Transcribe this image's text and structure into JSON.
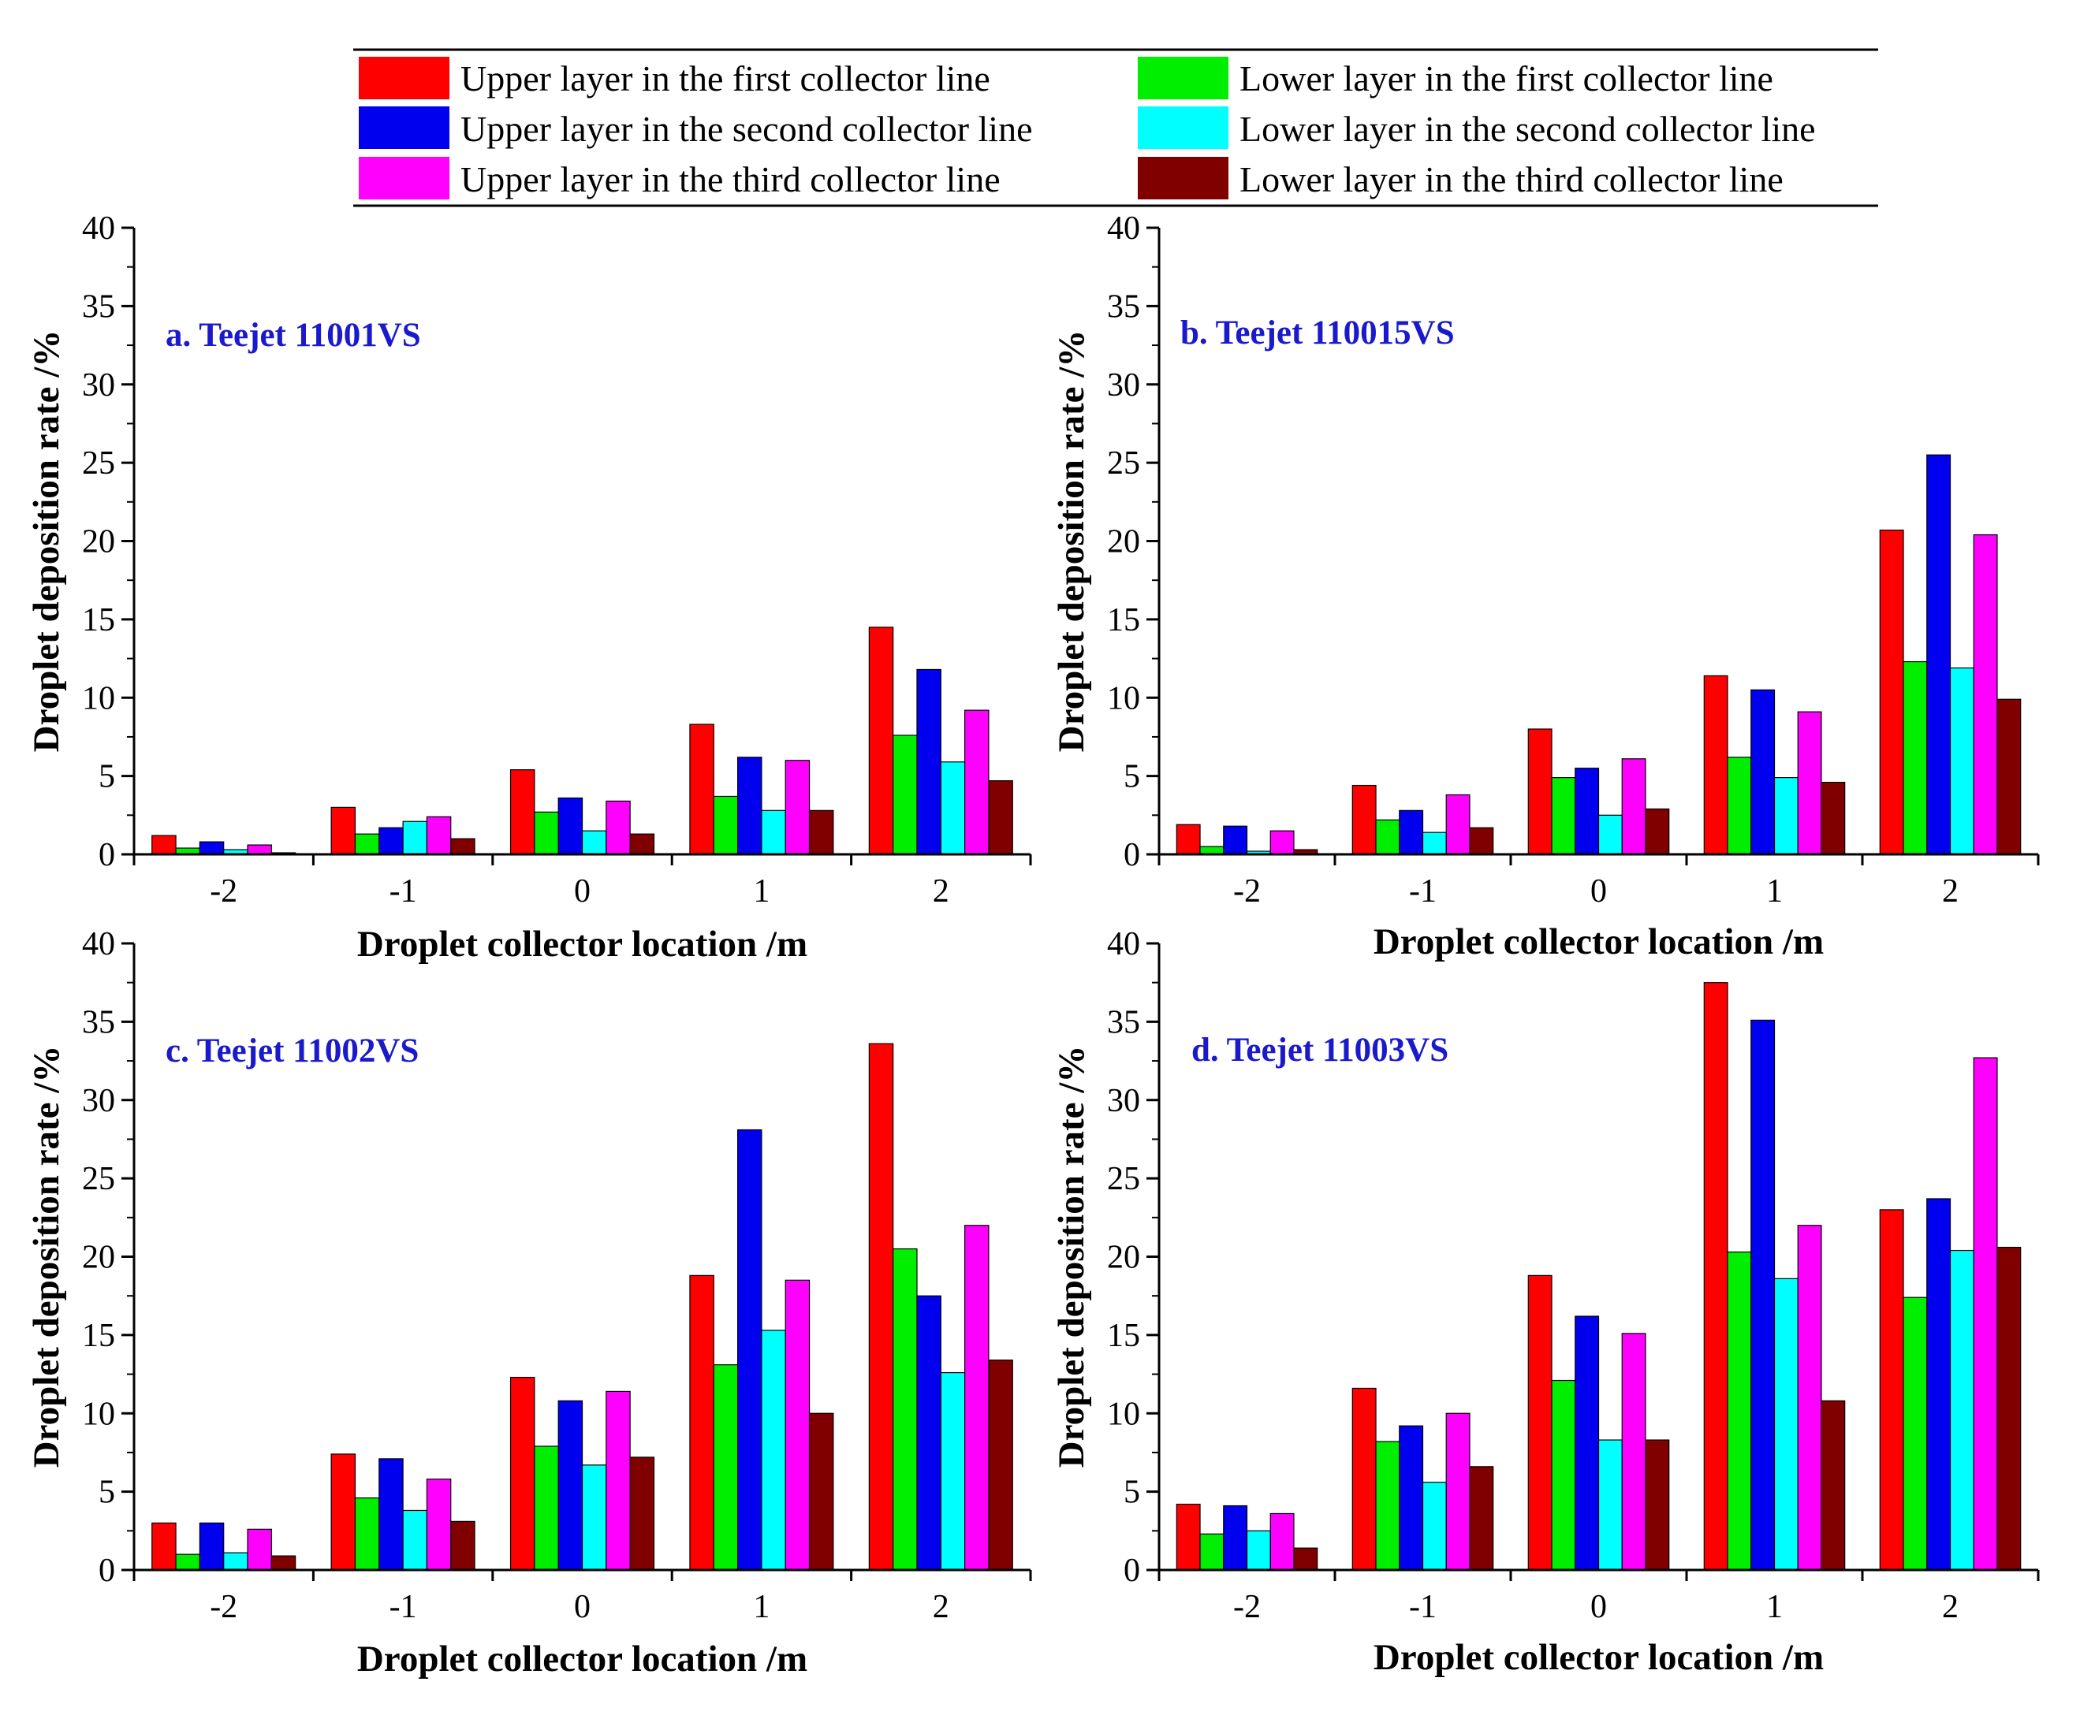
{
  "chart_data": {
    "type": "bar",
    "legend": {
      "placement": "top",
      "series": [
        {
          "name": "Upper layer in the first collector line",
          "color": "#ff0000"
        },
        {
          "name": "Lower layer in the first collector line",
          "color": "#00ee00"
        },
        {
          "name": "Upper layer in the second collector line",
          "color": "#0000ee"
        },
        {
          "name": "Lower layer in the second collector line",
          "color": "#00ffff"
        },
        {
          "name": "Upper layer in the third collector line",
          "color": "#ff00ff"
        },
        {
          "name": "Lower layer in the third collector line",
          "color": "#800000"
        }
      ]
    },
    "panels": [
      {
        "title": "a. Teejet 11001VS",
        "title_color": "#1a1acc",
        "xlabel": "Droplet collector location /m",
        "ylabel": "Droplet deposition rate /%",
        "ylim": [
          0,
          40
        ],
        "yticks": [
          0,
          5,
          10,
          15,
          20,
          25,
          30,
          35,
          40
        ],
        "categories": [
          "-2",
          "-1",
          "0",
          "1",
          "2"
        ],
        "series": [
          {
            "name": "Upper layer in the first collector line",
            "values": [
              1.2,
              3.0,
              5.4,
              8.3,
              14.5
            ]
          },
          {
            "name": "Lower layer in the first collector line",
            "values": [
              0.4,
              1.3,
              2.7,
              3.7,
              7.6
            ]
          },
          {
            "name": "Upper layer in the second collector line",
            "values": [
              0.8,
              1.7,
              3.6,
              6.2,
              11.8
            ]
          },
          {
            "name": "Lower layer in the second collector line",
            "values": [
              0.3,
              2.1,
              1.5,
              2.8,
              5.9
            ]
          },
          {
            "name": "Upper layer in the third collector line",
            "values": [
              0.6,
              2.4,
              3.4,
              6.0,
              9.2
            ]
          },
          {
            "name": "Lower layer in the third collector line",
            "values": [
              0.1,
              1.0,
              1.3,
              2.8,
              4.7
            ]
          }
        ]
      },
      {
        "title": "b. Teejet 110015VS",
        "title_color": "#1a1acc",
        "xlabel": "Droplet collector location /m",
        "ylabel": "Droplet deposition rate /%",
        "ylim": [
          0,
          40
        ],
        "yticks": [
          0,
          5,
          10,
          15,
          20,
          25,
          30,
          35,
          40
        ],
        "categories": [
          "-2",
          "-1",
          "0",
          "1",
          "2"
        ],
        "series": [
          {
            "name": "Upper layer in the first collector line",
            "values": [
              1.9,
              4.4,
              8.0,
              11.4,
              20.7
            ]
          },
          {
            "name": "Lower layer in the first collector line",
            "values": [
              0.5,
              2.2,
              4.9,
              6.2,
              12.3
            ]
          },
          {
            "name": "Upper layer in the second collector line",
            "values": [
              1.8,
              2.8,
              5.5,
              10.5,
              25.5
            ]
          },
          {
            "name": "Lower layer in the second collector line",
            "values": [
              0.2,
              1.4,
              2.5,
              4.9,
              11.9
            ]
          },
          {
            "name": "Upper layer in the third collector line",
            "values": [
              1.5,
              3.8,
              6.1,
              9.1,
              20.4
            ]
          },
          {
            "name": "Lower layer in the third collector line",
            "values": [
              0.3,
              1.7,
              2.9,
              4.6,
              9.9
            ]
          }
        ]
      },
      {
        "title": "c. Teejet 11002VS",
        "title_color": "#1a1acc",
        "xlabel": "Droplet collector location /m",
        "ylabel": "Droplet deposition rate /%",
        "ylim": [
          0,
          40
        ],
        "yticks": [
          0,
          5,
          10,
          15,
          20,
          25,
          30,
          35,
          40
        ],
        "categories": [
          "-2",
          "-1",
          "0",
          "1",
          "2"
        ],
        "series": [
          {
            "name": "Upper layer in the first collector line",
            "values": [
              3.0,
              7.4,
              12.3,
              18.8,
              33.6
            ]
          },
          {
            "name": "Lower layer in the first collector line",
            "values": [
              1.0,
              4.6,
              7.9,
              13.1,
              20.5
            ]
          },
          {
            "name": "Upper layer in the second collector line",
            "values": [
              3.0,
              7.1,
              10.8,
              28.1,
              17.5
            ]
          },
          {
            "name": "Lower layer in the second collector line",
            "values": [
              1.1,
              3.8,
              6.7,
              15.3,
              12.6
            ]
          },
          {
            "name": "Upper layer in the third collector line",
            "values": [
              2.6,
              5.8,
              11.4,
              18.5,
              22.0
            ]
          },
          {
            "name": "Lower layer in the third collector line",
            "values": [
              0.9,
              3.1,
              7.2,
              10.0,
              13.4
            ]
          }
        ]
      },
      {
        "title": "d. Teejet 11003VS",
        "title_color": "#1a1acc",
        "xlabel": "Droplet collector location /m",
        "ylabel": "Droplet deposition rate /%",
        "ylim": [
          0,
          40
        ],
        "yticks": [
          0,
          5,
          10,
          15,
          20,
          25,
          30,
          35,
          40
        ],
        "categories": [
          "-2",
          "-1",
          "0",
          "1",
          "2"
        ],
        "series": [
          {
            "name": "Upper layer in the first collector line",
            "values": [
              4.2,
              11.6,
              18.8,
              37.5,
              23.0
            ]
          },
          {
            "name": "Lower layer in the first collector line",
            "values": [
              2.3,
              8.2,
              12.1,
              20.3,
              17.4
            ]
          },
          {
            "name": "Upper layer in the second collector line",
            "values": [
              4.1,
              9.2,
              16.2,
              35.1,
              23.7
            ]
          },
          {
            "name": "Lower layer in the second collector line",
            "values": [
              2.5,
              5.6,
              8.3,
              18.6,
              20.4
            ]
          },
          {
            "name": "Upper layer in the third collector line",
            "values": [
              3.6,
              10.0,
              15.1,
              22.0,
              32.7
            ]
          },
          {
            "name": "Lower layer in the third collector line",
            "values": [
              1.4,
              6.6,
              8.3,
              10.8,
              20.6
            ]
          }
        ]
      }
    ]
  }
}
